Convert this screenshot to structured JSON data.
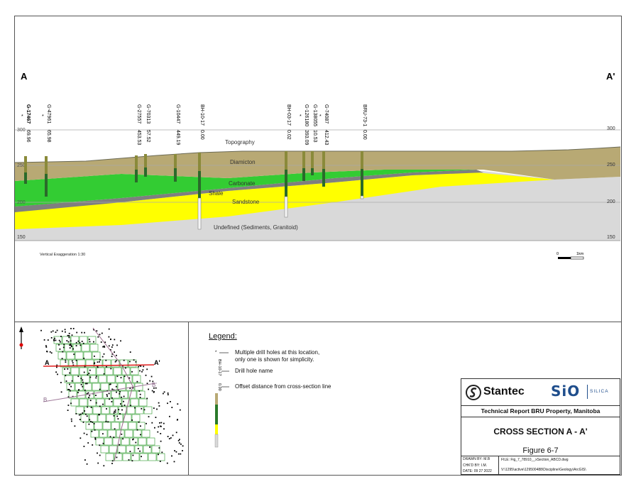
{
  "section": {
    "label_left": "A",
    "label_right": "A'",
    "elevation_ticks": [
      "300",
      "250",
      "200",
      "150"
    ],
    "units": {
      "topography": "Topography",
      "diamicton": "Diamicton",
      "carbonate": "Carbonate",
      "shale": "Shale",
      "sandstone": "Sandstone",
      "undefined": "Undefined (Sediments, Granitoid)"
    },
    "vertical_exaggeration": "Vertical Exaggeration 1:30",
    "scale_bar": {
      "start": "0",
      "end": "1km"
    },
    "drill_holes": [
      {
        "name": "G-17467",
        "offset": "69.96",
        "multi": true
      },
      {
        "name": "G-47961",
        "offset": "65.98",
        "multi": true
      },
      {
        "name": "G-27557",
        "offset": "453.53",
        "multi": false
      },
      {
        "name": "G-70313",
        "offset": "57.52",
        "multi": false
      },
      {
        "name": "G-10447",
        "offset": "449.19",
        "multi": false
      },
      {
        "name": "BH-10-17",
        "offset": "0.00",
        "multi": false
      },
      {
        "name": "BH-03-17",
        "offset": "0.02",
        "multi": false
      },
      {
        "name": "G-126180",
        "offset": "393.09",
        "multi": true
      },
      {
        "name": "G-138055",
        "offset": "10.53",
        "multi": false
      },
      {
        "name": "G-74087",
        "offset": "412.43",
        "multi": true
      },
      {
        "name": "BRU-73-1",
        "offset": "0.00",
        "multi": false
      }
    ]
  },
  "map": {
    "line_a": "A",
    "line_a_prime": "A'",
    "line_b": "B",
    "line_b_prime": "B'"
  },
  "legend": {
    "title": "Legend:",
    "multi_note_line1": "Multiple drill holes at this location,",
    "multi_note_line2": "only one is shown for simplicity.",
    "drill_hole_name": "Drill hole name",
    "offset_label": "Offset distance from cross-section line",
    "sample_name": "BH-10-17",
    "sample_offset": "0.00"
  },
  "title_block": {
    "company": "Stantec",
    "partner_logo": "SiO",
    "partner_word": "SILICA",
    "report": "Technical Report  BRU Property, Manitoba",
    "title": "CROSS SECTION A - A'",
    "figure": "Figure 6-7",
    "drawn_by": "DRAWN BY:  M.B",
    "checked_by": "CHK'D BY:  I.M.",
    "date": "DATE: 09 27 2022",
    "file": "FILE: Fig_7_78910__xSection_ABCD.dwg",
    "path": "V:\\1295\\active\\129500488\\Discipline\\Geology\\ArcGIS\\"
  },
  "colors": {
    "diamicton": "#b8a974",
    "carbonate": "#33cc33",
    "shale": "#7f7f7f",
    "sandstone": "#ffff00",
    "undefined": "#d9d9d9",
    "section_line_a": "#e02020",
    "grid_green": "#2a9a2a",
    "accent_blue": "#1f4e8c"
  }
}
